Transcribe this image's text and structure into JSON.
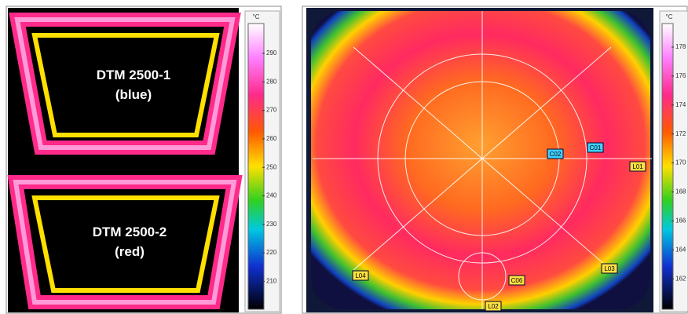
{
  "left_image": {
    "frames": [
      {
        "name": "DTM 2500-1",
        "color": "(blue)"
      },
      {
        "name": "DTM 2500-2",
        "color": "(red)"
      }
    ]
  },
  "left_colorbar": {
    "unit": "°C",
    "ticks": [
      290,
      280,
      270,
      260,
      250,
      240,
      230,
      220,
      210
    ]
  },
  "right_image": {
    "labels": [
      "C02",
      "C01",
      "L01",
      "L04",
      "C06",
      "L03",
      "L02"
    ]
  },
  "right_colorbar": {
    "unit": "°C",
    "ticks": [
      178,
      176,
      174,
      172,
      170,
      168,
      166,
      164,
      162
    ]
  }
}
